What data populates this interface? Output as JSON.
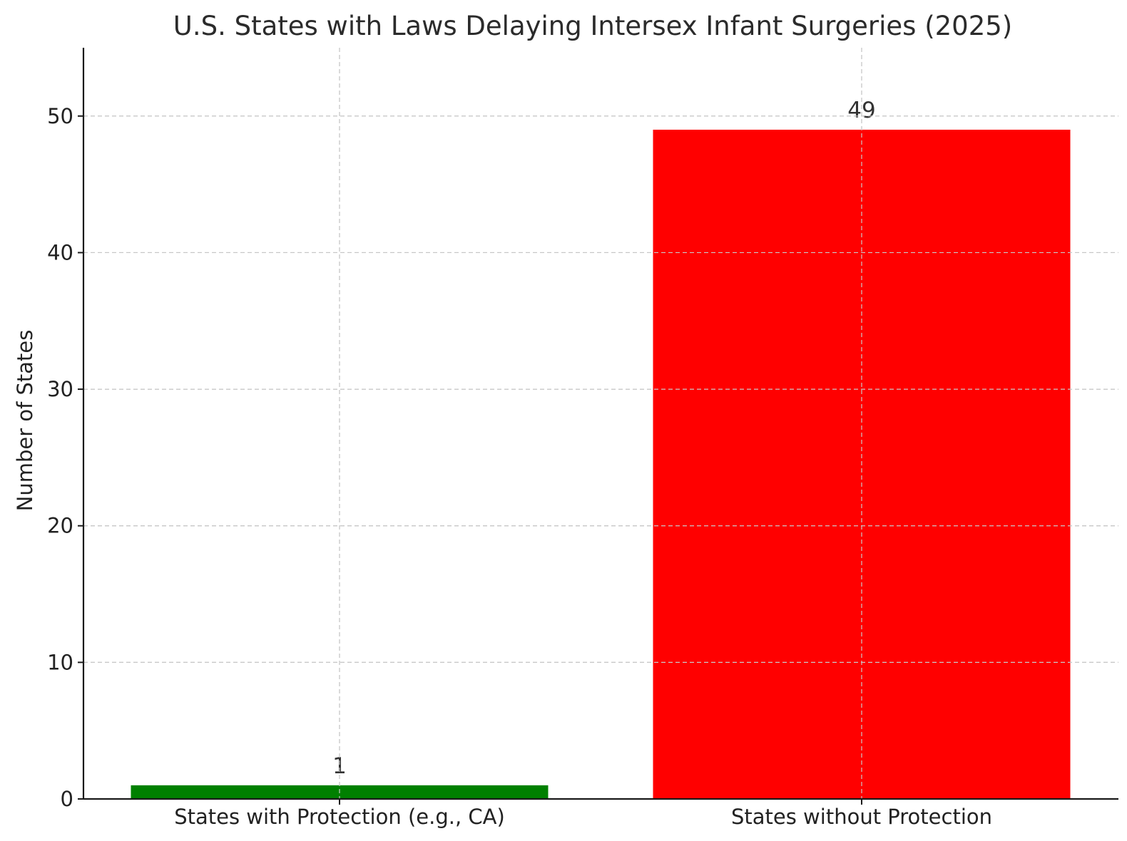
{
  "chart_data": {
    "type": "bar",
    "title": "U.S. States with Laws Delaying Intersex Infant Surgeries (2025)",
    "xlabel": "",
    "ylabel": "Number of States",
    "categories": [
      "States with Protection (e.g., CA)",
      "States without Protection"
    ],
    "values": [
      1,
      49
    ],
    "value_labels": [
      "1",
      "49"
    ],
    "colors": [
      "#008000",
      "#ff0000"
    ],
    "ylim": [
      0,
      55
    ],
    "yticks": [
      0,
      10,
      20,
      30,
      40,
      50
    ],
    "grid": true
  }
}
